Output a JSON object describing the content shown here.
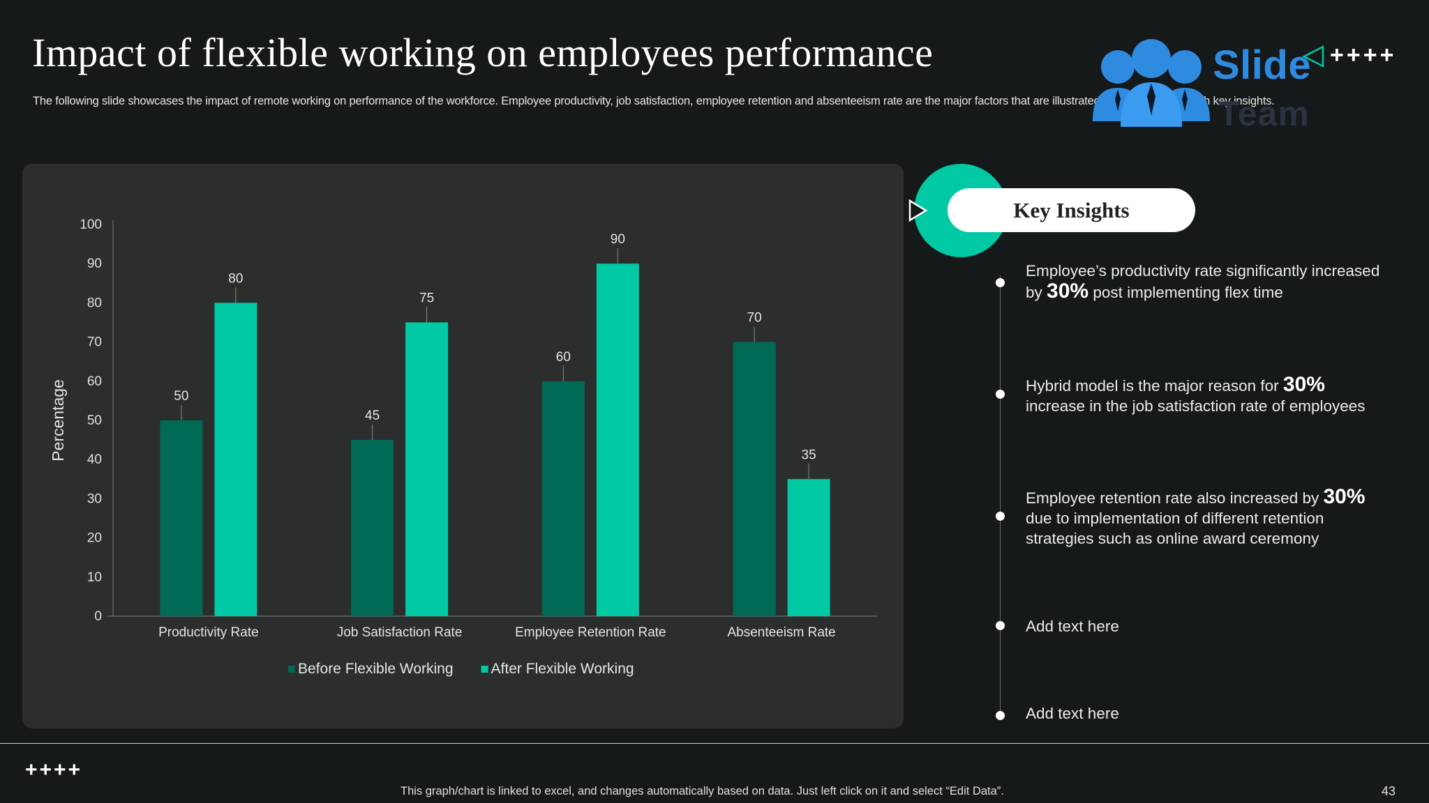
{
  "header": {
    "title": "Impact of flexible working on employees performance",
    "subtitle": "The following slide showcases the impact of remote working on performance of the workforce. Employee productivity, job satisfaction, employee retention and absenteeism rate are the major factors that are illustrated in the slide along with key insights."
  },
  "logo": {
    "text": "Slide",
    "sub_text": "Team",
    "decoration": "++++",
    "icon": "team-people-icon"
  },
  "chart_data": {
    "type": "bar",
    "title": "",
    "xlabel": "",
    "ylabel": "Percentage",
    "ylim": [
      0,
      100
    ],
    "yticks": [
      0,
      10,
      20,
      30,
      40,
      50,
      60,
      70,
      80,
      90,
      100
    ],
    "categories": [
      "Productivity Rate",
      "Job Satisfaction Rate",
      "Employee Retention Rate",
      "Absenteeism Rate"
    ],
    "series": [
      {
        "name": "Before Flexible Working",
        "values": [
          50,
          45,
          60,
          70
        ],
        "color": "#006a55"
      },
      {
        "name": "After Flexible Working",
        "values": [
          80,
          75,
          90,
          35
        ],
        "color": "#00c9a3"
      }
    ],
    "legend_position": "bottom",
    "grid": false
  },
  "insights": {
    "heading": "Key Insights",
    "items": [
      {
        "before": "Employee’s productivity rate significantly increased by ",
        "highlight": "30%",
        "after": " post implementing flex time"
      },
      {
        "before": "Hybrid model is the major reason for ",
        "highlight": "30%",
        "after": " increase in the job satisfaction rate of employees"
      },
      {
        "before": "Employee retention rate also increased by ",
        "highlight": "30%",
        "after": " due to implementation of different retention strategies such as online award ceremony"
      },
      {
        "before": "Add text here",
        "highlight": "",
        "after": ""
      },
      {
        "before": "Add text here",
        "highlight": "",
        "after": ""
      }
    ]
  },
  "footer": {
    "decoration": "++++",
    "note": "This graph/chart is linked to excel, and changes automatically based on data. Just left click on it and select “Edit Data”.",
    "page_number": "43"
  },
  "colors": {
    "accent": "#00c9a3",
    "dark_accent": "#006a55",
    "logo_blue": "#2e8be0",
    "background": "#16191a",
    "panel": "#2c2d2d"
  }
}
